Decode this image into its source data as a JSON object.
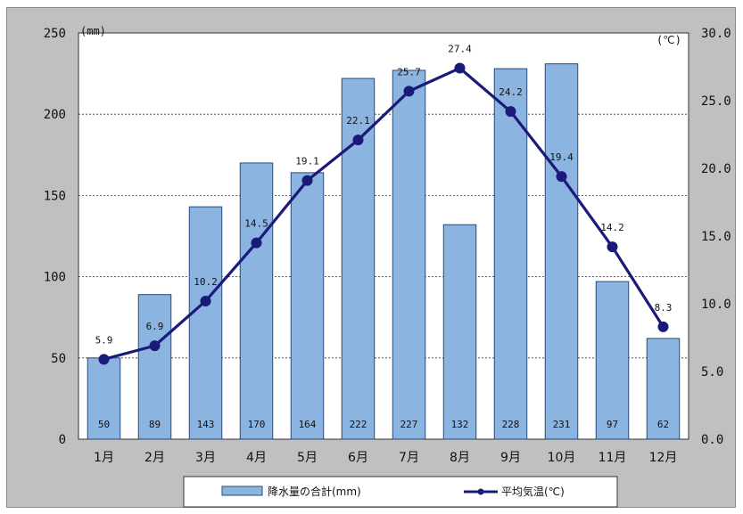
{
  "chart_data": {
    "type": "bar",
    "categories": [
      "1月",
      "2月",
      "3月",
      "4月",
      "5月",
      "6月",
      "7月",
      "8月",
      "9月",
      "10月",
      "11月",
      "12月"
    ],
    "series": [
      {
        "name": "降水量の合計(mm)",
        "type": "bar",
        "axis": "left",
        "color": "#8cb4e0",
        "values": [
          50,
          89,
          143,
          170,
          164,
          222,
          227,
          132,
          228,
          231,
          97,
          62
        ]
      },
      {
        "name": "平均気温(℃)",
        "type": "line",
        "axis": "right",
        "color": "#1a1a7a",
        "values": [
          5.9,
          6.9,
          10.2,
          14.5,
          19.1,
          22.1,
          25.7,
          27.4,
          24.2,
          19.4,
          14.2,
          8.3
        ]
      }
    ],
    "y_left": {
      "unit": "(mm)",
      "ylim": [
        0,
        250
      ],
      "ticks": [
        "0",
        "50",
        "100",
        "150",
        "200",
        "250"
      ]
    },
    "y_right": {
      "unit": "(℃)",
      "ylim": [
        0,
        30
      ],
      "ticks": [
        "0.0",
        "5.0",
        "10.0",
        "15.0",
        "20.0",
        "25.0",
        "30.0"
      ]
    },
    "grid": true,
    "legend_position": "bottom",
    "background_color": "#c0c0c0",
    "plot_color": "#ffffff"
  }
}
